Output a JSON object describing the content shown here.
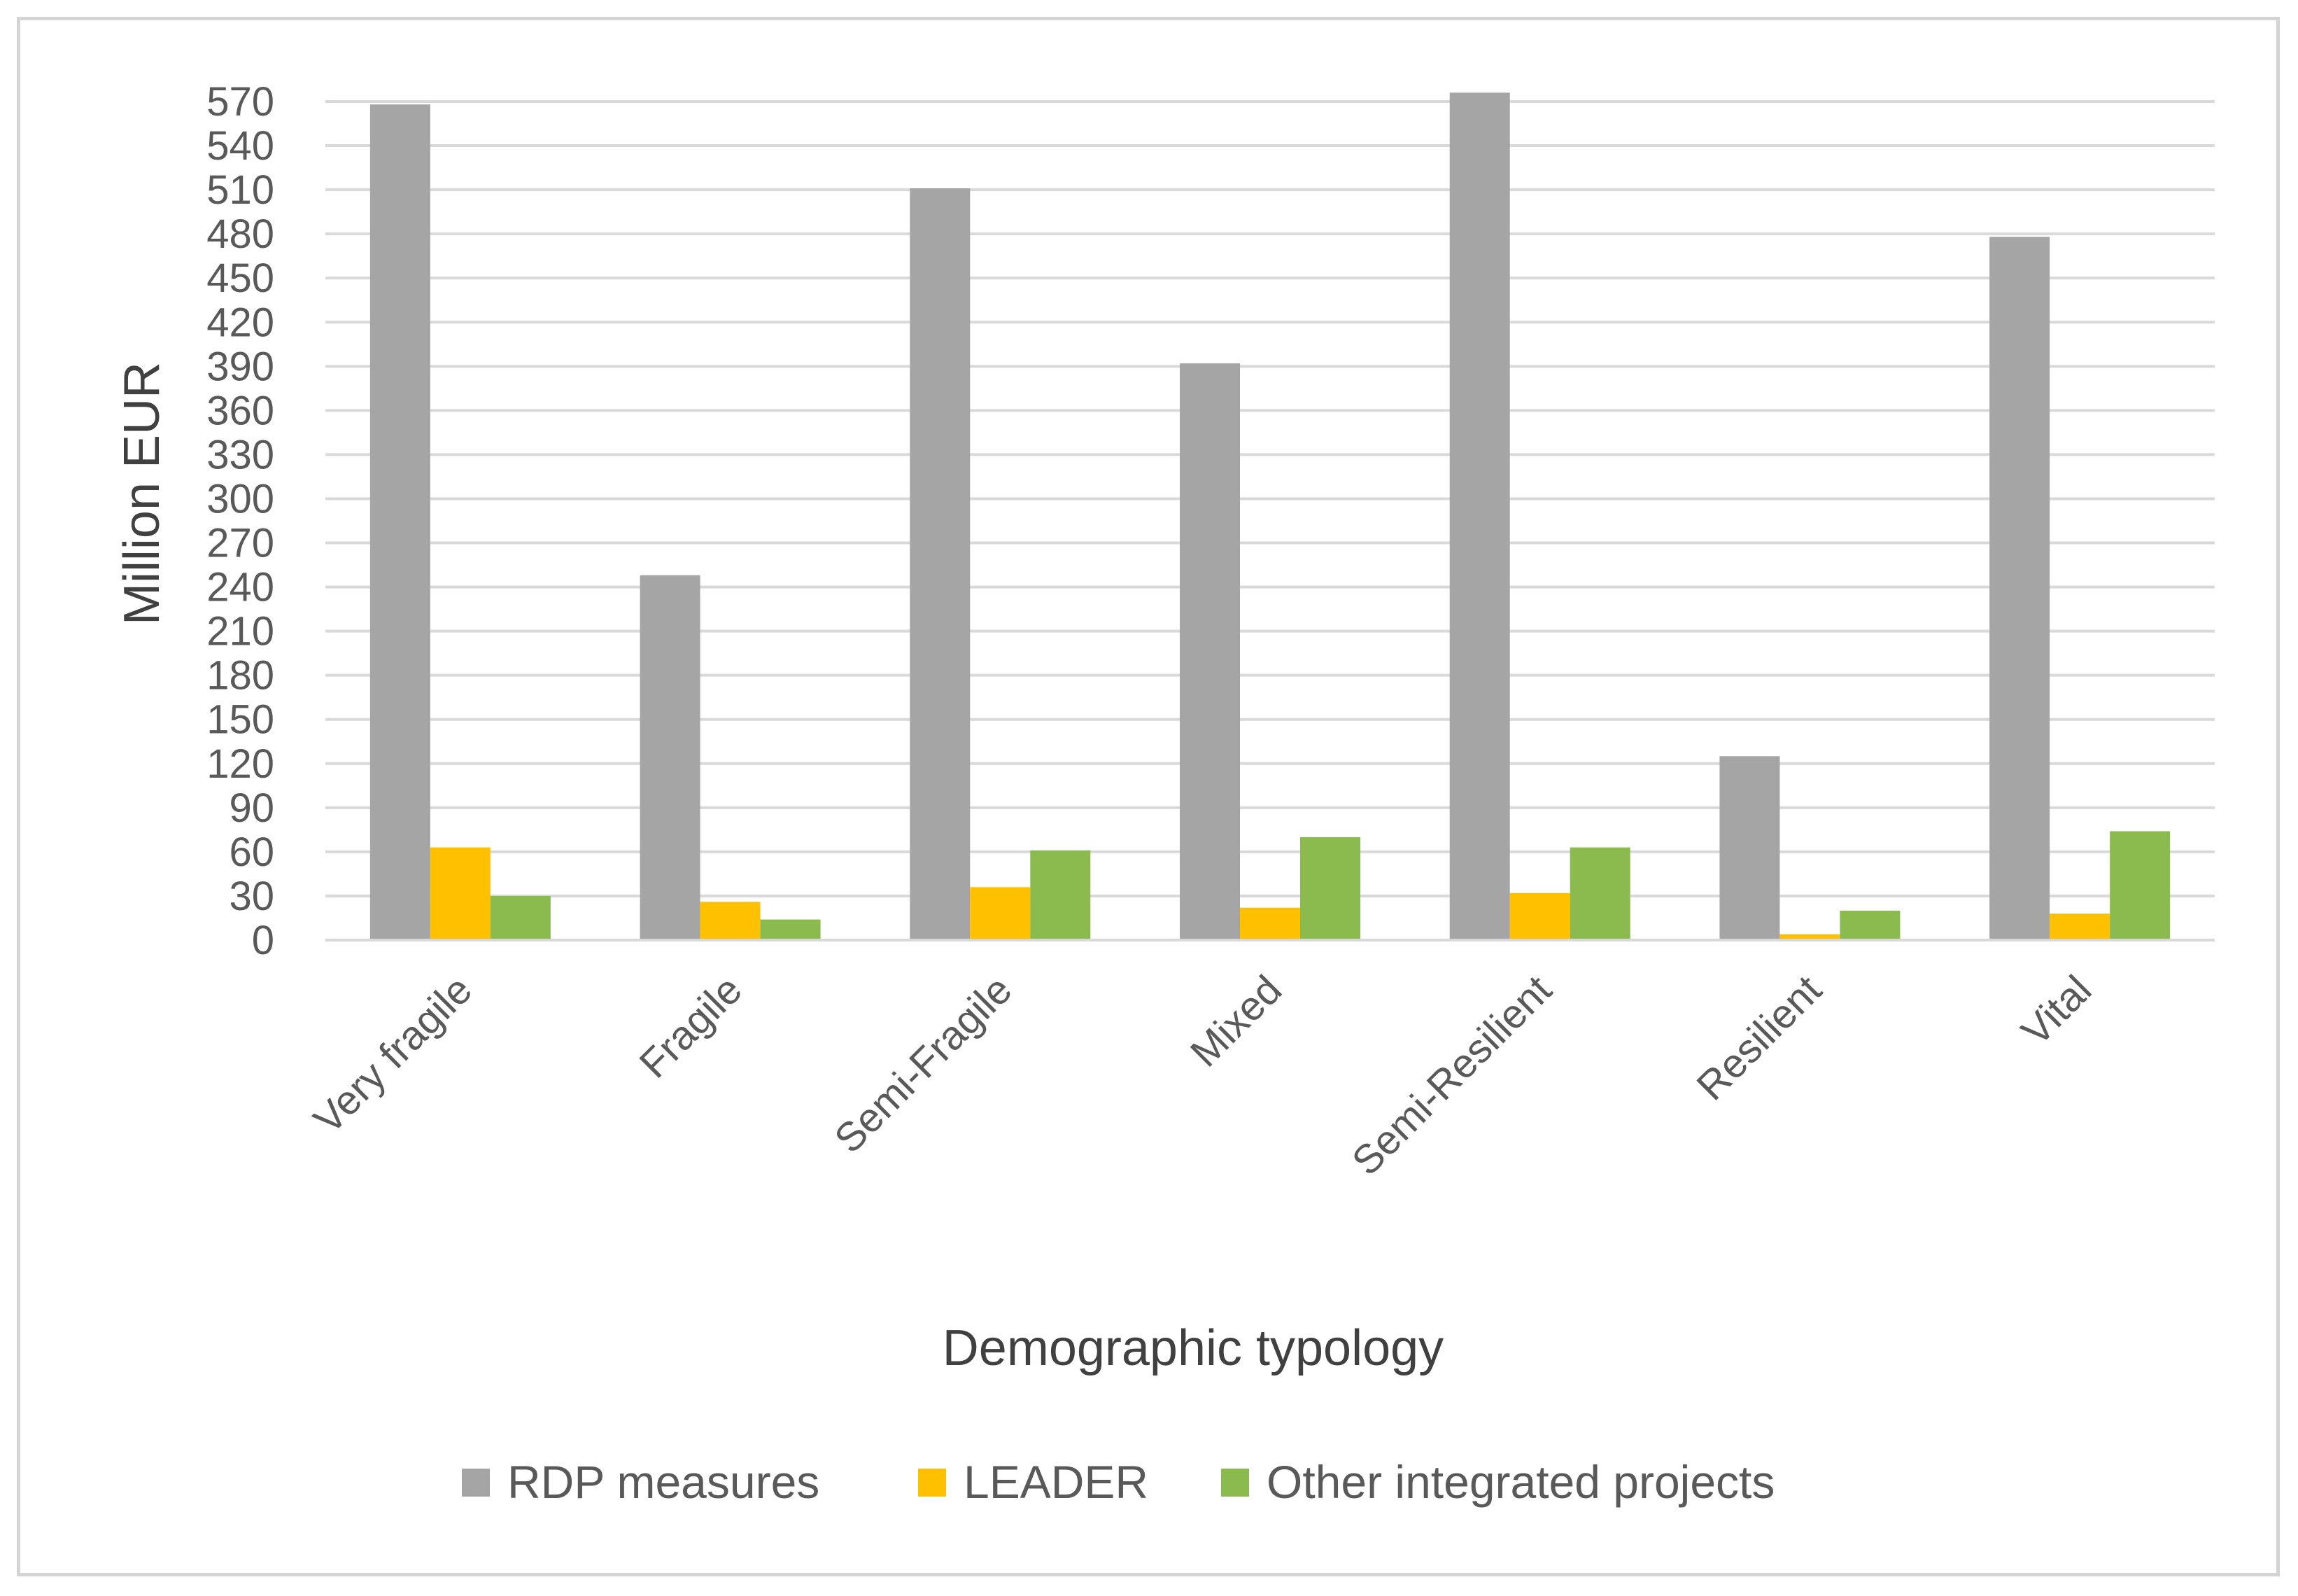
{
  "chart_data": {
    "type": "bar",
    "title": "",
    "xlabel": "Demographic typology",
    "ylabel": "Million EUR",
    "ylim": [
      0,
      570
    ],
    "yticks": [
      0,
      30,
      60,
      90,
      120,
      150,
      180,
      210,
      240,
      270,
      300,
      330,
      360,
      390,
      420,
      450,
      480,
      510,
      540,
      570
    ],
    "grid": true,
    "legend_position": "bottom",
    "categories": [
      "Very fragile",
      "Fragile",
      "Semi-Fragile",
      "Mixed",
      "Semi-Resilient",
      "Resilient",
      "Vital"
    ],
    "series": [
      {
        "name": "RDP measures",
        "color": "#a5a5a5",
        "values": [
          568,
          248,
          511,
          392,
          576,
          125,
          478
        ]
      },
      {
        "name": "LEADER",
        "color": "#ffc000",
        "values": [
          63,
          26,
          36,
          22,
          32,
          4,
          18
        ]
      },
      {
        "name": "Other integrated projects",
        "color": "#8bbb4e",
        "values": [
          30,
          14,
          61,
          70,
          63,
          20,
          74
        ]
      }
    ]
  }
}
